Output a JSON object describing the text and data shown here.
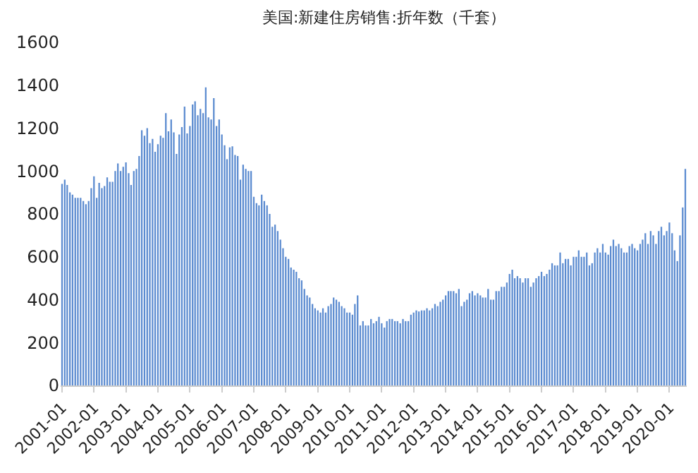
{
  "chart_data": {
    "type": "bar",
    "title": "美国:新建住房销售:折年数（千套）",
    "x": [
      "2001-01",
      "2001-02",
      "2001-03",
      "2001-04",
      "2001-05",
      "2001-06",
      "2001-07",
      "2001-08",
      "2001-09",
      "2001-10",
      "2001-11",
      "2001-12",
      "2002-01",
      "2002-02",
      "2002-03",
      "2002-04",
      "2002-05",
      "2002-06",
      "2002-07",
      "2002-08",
      "2002-09",
      "2002-10",
      "2002-11",
      "2002-12",
      "2003-01",
      "2003-02",
      "2003-03",
      "2003-04",
      "2003-05",
      "2003-06",
      "2003-07",
      "2003-08",
      "2003-09",
      "2003-10",
      "2003-11",
      "2003-12",
      "2004-01",
      "2004-02",
      "2004-03",
      "2004-04",
      "2004-05",
      "2004-06",
      "2004-07",
      "2004-08",
      "2004-09",
      "2004-10",
      "2004-11",
      "2004-12",
      "2005-01",
      "2005-02",
      "2005-03",
      "2005-04",
      "2005-05",
      "2005-06",
      "2005-07",
      "2005-08",
      "2005-09",
      "2005-10",
      "2005-11",
      "2005-12",
      "2006-01",
      "2006-02",
      "2006-03",
      "2006-04",
      "2006-05",
      "2006-06",
      "2006-07",
      "2006-08",
      "2006-09",
      "2006-10",
      "2006-11",
      "2006-12",
      "2007-01",
      "2007-02",
      "2007-03",
      "2007-04",
      "2007-05",
      "2007-06",
      "2007-07",
      "2007-08",
      "2007-09",
      "2007-10",
      "2007-11",
      "2007-12",
      "2008-01",
      "2008-02",
      "2008-03",
      "2008-04",
      "2008-05",
      "2008-06",
      "2008-07",
      "2008-08",
      "2008-09",
      "2008-10",
      "2008-11",
      "2008-12",
      "2009-01",
      "2009-02",
      "2009-03",
      "2009-04",
      "2009-05",
      "2009-06",
      "2009-07",
      "2009-08",
      "2009-09",
      "2009-10",
      "2009-11",
      "2009-12",
      "2010-01",
      "2010-02",
      "2010-03",
      "2010-04",
      "2010-05",
      "2010-06",
      "2010-07",
      "2010-08",
      "2010-09",
      "2010-10",
      "2010-11",
      "2010-12",
      "2011-01",
      "2011-02",
      "2011-03",
      "2011-04",
      "2011-05",
      "2011-06",
      "2011-07",
      "2011-08",
      "2011-09",
      "2011-10",
      "2011-11",
      "2011-12",
      "2012-01",
      "2012-02",
      "2012-03",
      "2012-04",
      "2012-05",
      "2012-06",
      "2012-07",
      "2012-08",
      "2012-09",
      "2012-10",
      "2012-11",
      "2012-12",
      "2013-01",
      "2013-02",
      "2013-03",
      "2013-04",
      "2013-05",
      "2013-06",
      "2013-07",
      "2013-08",
      "2013-09",
      "2013-10",
      "2013-11",
      "2013-12",
      "2014-01",
      "2014-02",
      "2014-03",
      "2014-04",
      "2014-05",
      "2014-06",
      "2014-07",
      "2014-08",
      "2014-09",
      "2014-10",
      "2014-11",
      "2014-12",
      "2015-01",
      "2015-02",
      "2015-03",
      "2015-04",
      "2015-05",
      "2015-06",
      "2015-07",
      "2015-08",
      "2015-09",
      "2015-10",
      "2015-11",
      "2015-12",
      "2016-01",
      "2016-02",
      "2016-03",
      "2016-04",
      "2016-05",
      "2016-06",
      "2016-07",
      "2016-08",
      "2016-09",
      "2016-10",
      "2016-11",
      "2016-12",
      "2017-01",
      "2017-02",
      "2017-03",
      "2017-04",
      "2017-05",
      "2017-06",
      "2017-07",
      "2017-08",
      "2017-09",
      "2017-10",
      "2017-11",
      "2017-12",
      "2018-01",
      "2018-02",
      "2018-03",
      "2018-04",
      "2018-05",
      "2018-06",
      "2018-07",
      "2018-08",
      "2018-09",
      "2018-10",
      "2018-11",
      "2018-12",
      "2019-01",
      "2019-02",
      "2019-03",
      "2019-04",
      "2019-05",
      "2019-06",
      "2019-07",
      "2019-08",
      "2019-09",
      "2019-10",
      "2019-11",
      "2019-12",
      "2020-01",
      "2020-02",
      "2020-03",
      "2020-04",
      "2020-05",
      "2020-06",
      "2020-07"
    ],
    "values": [
      940,
      960,
      935,
      900,
      890,
      875,
      875,
      875,
      860,
      845,
      860,
      920,
      975,
      875,
      945,
      920,
      930,
      970,
      950,
      950,
      1000,
      1035,
      1000,
      1020,
      1040,
      990,
      935,
      1000,
      1010,
      1070,
      1190,
      1165,
      1200,
      1130,
      1150,
      1090,
      1125,
      1165,
      1155,
      1270,
      1185,
      1240,
      1180,
      1080,
      1170,
      1205,
      1300,
      1175,
      1210,
      1310,
      1325,
      1260,
      1290,
      1270,
      1390,
      1250,
      1240,
      1340,
      1210,
      1240,
      1170,
      1120,
      1055,
      1110,
      1115,
      1075,
      1070,
      960,
      1030,
      1010,
      1000,
      1000,
      880,
      850,
      840,
      890,
      860,
      840,
      800,
      740,
      750,
      720,
      680,
      640,
      600,
      590,
      550,
      540,
      530,
      500,
      490,
      450,
      420,
      410,
      380,
      360,
      350,
      340,
      360,
      340,
      370,
      380,
      410,
      400,
      390,
      370,
      360,
      340,
      340,
      330,
      380,
      420,
      280,
      300,
      280,
      280,
      310,
      290,
      300,
      320,
      290,
      270,
      300,
      310,
      310,
      300,
      300,
      290,
      310,
      300,
      300,
      330,
      340,
      350,
      345,
      350,
      350,
      360,
      350,
      360,
      380,
      370,
      390,
      400,
      420,
      440,
      440,
      440,
      430,
      450,
      370,
      390,
      400,
      430,
      440,
      420,
      430,
      420,
      410,
      410,
      450,
      400,
      400,
      440,
      440,
      460,
      460,
      480,
      520,
      540,
      500,
      510,
      500,
      480,
      500,
      500,
      460,
      480,
      500,
      510,
      530,
      510,
      520,
      540,
      570,
      560,
      560,
      620,
      570,
      590,
      590,
      560,
      600,
      600,
      630,
      600,
      600,
      620,
      560,
      570,
      620,
      640,
      620,
      660,
      620,
      610,
      650,
      680,
      650,
      660,
      640,
      620,
      620,
      650,
      660,
      640,
      630,
      660,
      680,
      710,
      660,
      720,
      700,
      660,
      720,
      740,
      700,
      720,
      760,
      710,
      630,
      580,
      700,
      830,
      1010
    ],
    "xlim": [
      "2000-12-16",
      "2020-07-17"
    ],
    "xticks": [
      "2001-01",
      "2002-01",
      "2003-01",
      "2004-01",
      "2005-01",
      "2006-01",
      "2007-01",
      "2008-01",
      "2009-01",
      "2010-01",
      "2011-01",
      "2012-01",
      "2013-01",
      "2014-01",
      "2015-01",
      "2016-01",
      "2017-01",
      "2018-01",
      "2019-01",
      "2020-01"
    ],
    "color": "#5b8bd0",
    "ylim": [
      0,
      1600
    ],
    "yticks": [
      0,
      200,
      400,
      600,
      800,
      1000,
      1200,
      1400,
      1600
    ]
  }
}
